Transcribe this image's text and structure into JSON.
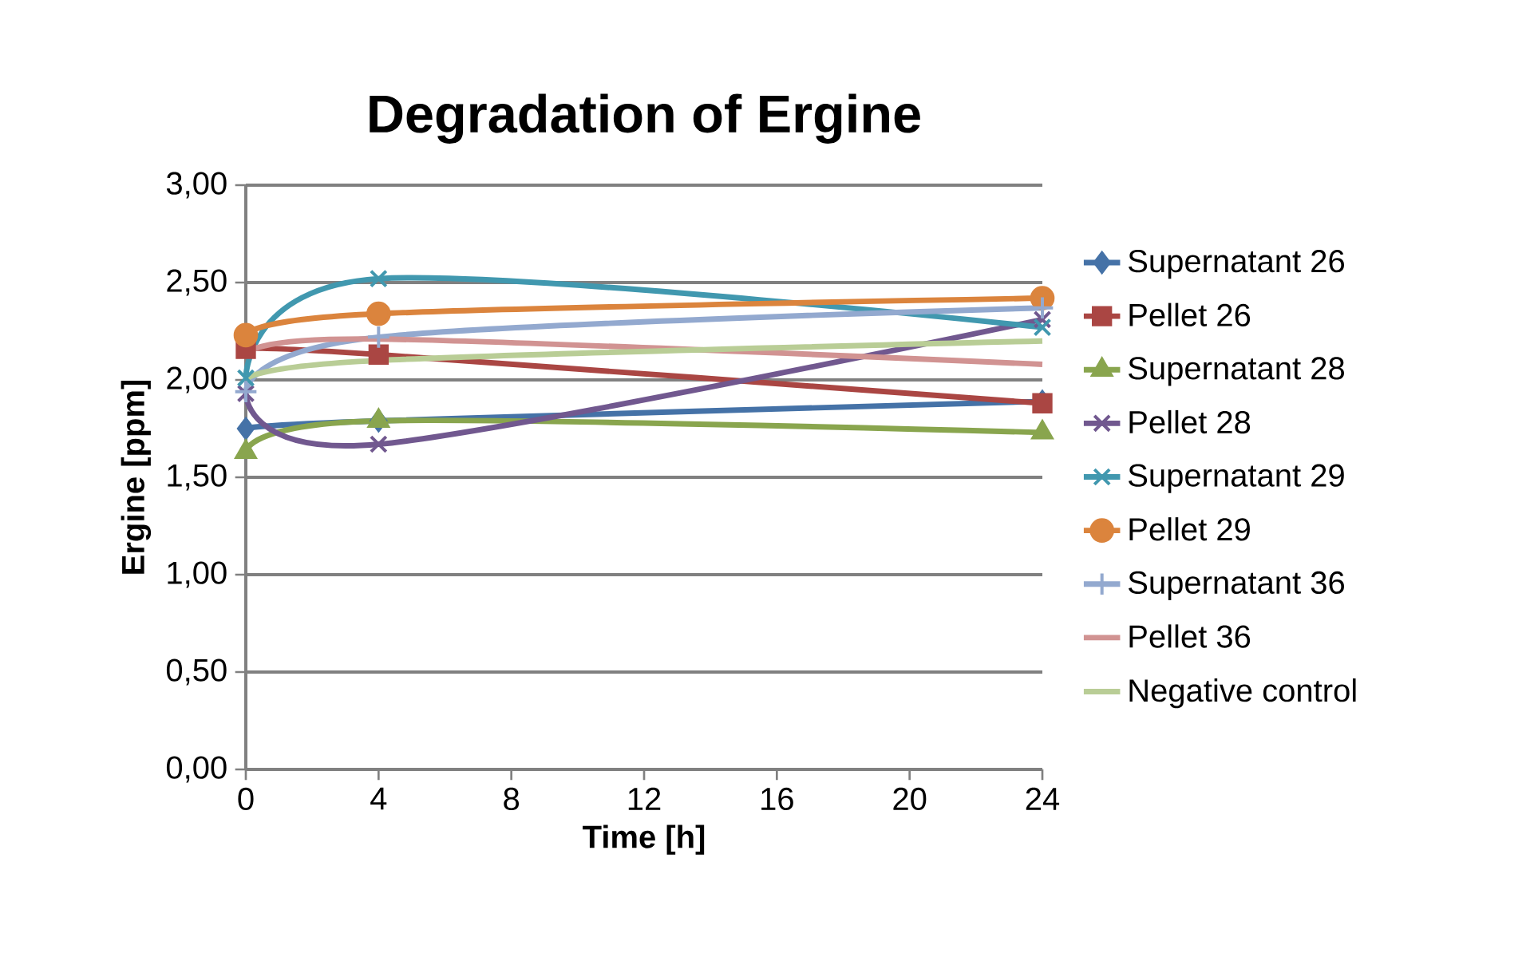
{
  "chart_data": {
    "type": "line",
    "title": "Degradation of Ergine",
    "xlabel": "Time [h]",
    "ylabel": "Ergine [ppm]",
    "x": [
      0,
      4,
      24
    ],
    "xlim": [
      0,
      24
    ],
    "xticks": [
      0,
      4,
      8,
      12,
      16,
      20,
      24
    ],
    "ylim": [
      0,
      3
    ],
    "yticks": [
      {
        "value": 0,
        "label": "0,00"
      },
      {
        "value": 0.5,
        "label": "0,50"
      },
      {
        "value": 1,
        "label": "1,00"
      },
      {
        "value": 1.5,
        "label": "1,50"
      },
      {
        "value": 2,
        "label": "2,00"
      },
      {
        "value": 2.5,
        "label": "2,50"
      },
      {
        "value": 3,
        "label": "3,00"
      }
    ],
    "grid": "y",
    "legend": "right",
    "series": [
      {
        "name": "Supernatant 26",
        "color": "#4572a7",
        "marker": "diamond",
        "values": [
          1.75,
          1.79,
          1.89
        ]
      },
      {
        "name": "Pellet 26",
        "color": "#aa4643",
        "marker": "square",
        "values": [
          2.16,
          2.13,
          1.88
        ]
      },
      {
        "name": "Supernatant 28",
        "color": "#89a54e",
        "marker": "triangle",
        "values": [
          1.63,
          1.79,
          1.73
        ]
      },
      {
        "name": "Pellet 28",
        "color": "#71588f",
        "marker": "cross",
        "values": [
          1.93,
          1.67,
          2.31
        ]
      },
      {
        "name": "Supernatant 29",
        "color": "#4198af",
        "marker": "cross",
        "values": [
          2.01,
          2.52,
          2.27
        ]
      },
      {
        "name": "Pellet 29",
        "color": "#db843d",
        "marker": "circle",
        "values": [
          2.23,
          2.34,
          2.42
        ]
      },
      {
        "name": "Supernatant 36",
        "color": "#93a9cf",
        "marker": "plus",
        "values": [
          1.94,
          2.22,
          2.37
        ]
      },
      {
        "name": "Pellet 36",
        "color": "#d19392",
        "marker": "none",
        "values": [
          2.13,
          2.21,
          2.08
        ]
      },
      {
        "name": "Negative control",
        "color": "#b9cd96",
        "marker": "none",
        "values": [
          2.0,
          2.1,
          2.2
        ]
      }
    ]
  }
}
